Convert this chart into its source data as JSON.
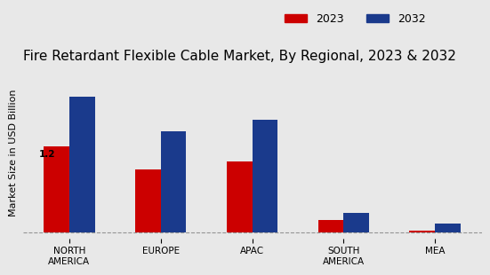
{
  "title": "Fire Retardant Flexible Cable Market, By Regional, 2023 & 2032",
  "ylabel": "Market Size in USD Billion",
  "categories": [
    "NORTH\nAMERICA",
    "EUROPE",
    "APAC",
    "SOUTH\nAMERICA",
    "MEA"
  ],
  "values_2023": [
    1.2,
    0.88,
    1.0,
    0.18,
    0.03
  ],
  "values_2032": [
    1.9,
    1.42,
    1.58,
    0.28,
    0.13
  ],
  "color_2023": "#cc0000",
  "color_2032": "#1a3a8c",
  "annotation_text": "1.2",
  "background_color": "#e8e8e8",
  "bar_width": 0.28,
  "legend_labels": [
    "2023",
    "2032"
  ],
  "title_fontsize": 11,
  "ylabel_fontsize": 8,
  "tick_fontsize": 7.5,
  "legend_fontsize": 9
}
